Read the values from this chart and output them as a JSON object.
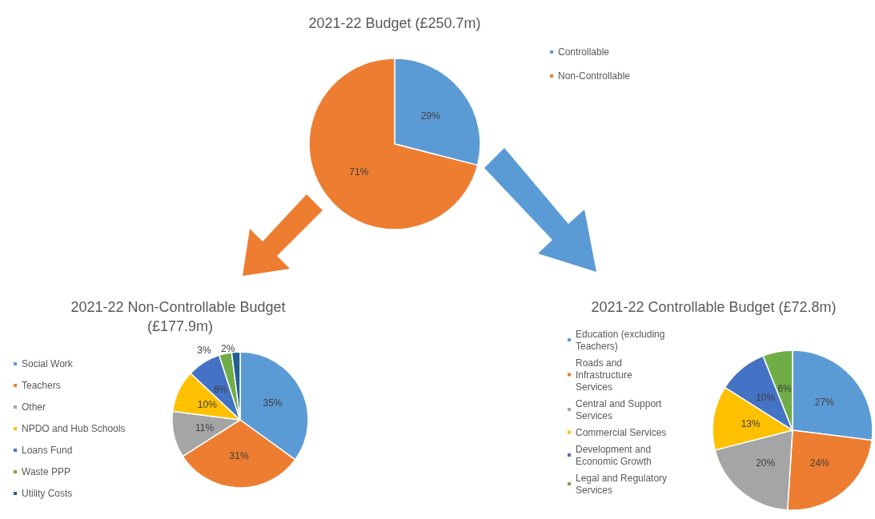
{
  "chart_data": [
    {
      "type": "pie",
      "title": "2021-22 Budget (£250.7m)",
      "categories": [
        "Controllable",
        "Non-Controllable"
      ],
      "values": [
        29,
        71
      ],
      "colors": [
        "#5b9bd5",
        "#ed7d31"
      ],
      "value_labels": [
        "29%",
        "71%"
      ],
      "legend": "top right"
    },
    {
      "type": "pie",
      "title": "2021-22 Non-Controllable Budget (£177.9m)",
      "categories": [
        "Social Work",
        "Teachers",
        "Other",
        "NPDO and Hub Schools",
        "Loans Fund",
        "Waste PPP",
        "Utility Costs"
      ],
      "values": [
        35,
        31,
        11,
        10,
        8,
        3,
        2
      ],
      "colors": [
        "#5b9bd5",
        "#ed7d31",
        "#a5a5a5",
        "#ffc000",
        "#4472c4",
        "#70ad47",
        "#255e91"
      ],
      "value_labels": [
        "35%",
        "31%",
        "11%",
        "10%",
        "8%",
        "3%",
        "2%"
      ],
      "legend": "left"
    },
    {
      "type": "pie",
      "title": "2021-22 Controllable Budget (£72.8m)",
      "categories": [
        "Education (excluding Teachers)",
        "Roads and Infrastructure Services",
        "Central and Support Services",
        "Commercial Services",
        "Development and Economic Growth",
        "Legal and Regulatory Services"
      ],
      "values": [
        27,
        24,
        20,
        13,
        10,
        6
      ],
      "colors": [
        "#5b9bd5",
        "#ed7d31",
        "#a5a5a5",
        "#ffc000",
        "#4472c4",
        "#70ad47"
      ],
      "value_labels": [
        "27%",
        "24%",
        "20%",
        "13%",
        "10%",
        "6%"
      ],
      "legend": "left"
    }
  ]
}
